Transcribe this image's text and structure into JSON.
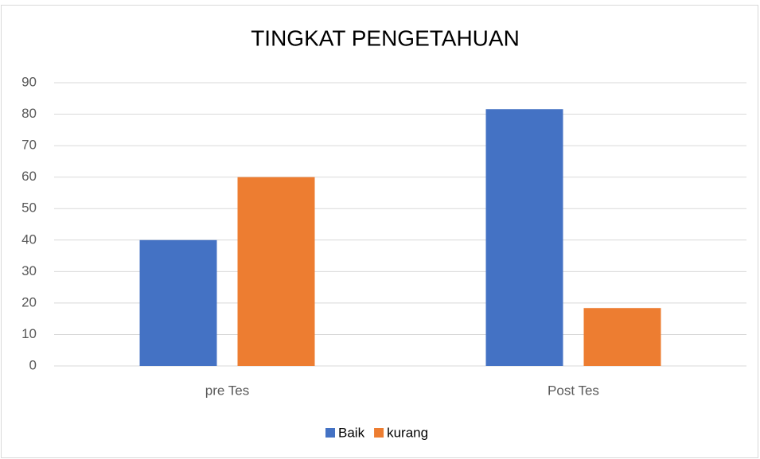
{
  "chart_data": {
    "type": "bar",
    "title": "TINGKAT PENGETAHUAN",
    "categories": [
      "pre Tes",
      "Post Tes"
    ],
    "series": [
      {
        "name": "Baik",
        "color": "#4472c4",
        "values": [
          40,
          81.6
        ]
      },
      {
        "name": "kurang",
        "color": "#ed7d31",
        "values": [
          60,
          18.4
        ]
      }
    ],
    "ylim": [
      0,
      90
    ],
    "yticks": [
      0,
      10,
      20,
      30,
      40,
      50,
      60,
      70,
      80,
      90
    ],
    "grid": true,
    "legend": "bottom"
  }
}
